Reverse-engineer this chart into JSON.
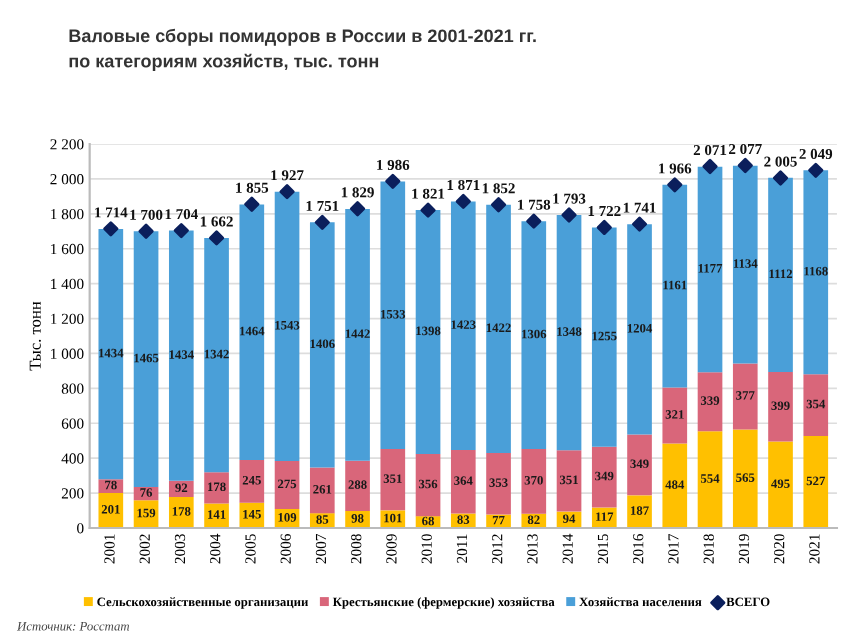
{
  "chart_data": {
    "type": "bar",
    "stacked": true,
    "title": "Валовые сборы помидоров в России в 2001-2021 гг.\nпо категориям хозяйств, тыс. тонн",
    "ylabel": "Тыс. тонн",
    "categories": [
      "2001",
      "2002",
      "2003",
      "2004",
      "2005",
      "2006",
      "2007",
      "2008",
      "2009",
      "2010",
      "2011",
      "2012",
      "2013",
      "2014",
      "2015",
      "2016",
      "2017",
      "2018",
      "2019",
      "2020",
      "2021"
    ],
    "series": [
      {
        "name": "Сельскохозяйственные организации",
        "color": "#ffc000",
        "values": [
          201,
          159,
          178,
          141,
          145,
          109,
          85,
          98,
          101,
          68,
          83,
          77,
          82,
          94,
          117,
          187,
          484,
          554,
          565,
          495,
          527
        ]
      },
      {
        "name": "Крестьянские (фермерские) хозяйства",
        "color": "#d9667a",
        "values": [
          78,
          76,
          92,
          178,
          245,
          275,
          261,
          288,
          351,
          356,
          364,
          353,
          370,
          351,
          349,
          349,
          321,
          339,
          377,
          399,
          354
        ]
      },
      {
        "name": "Хозяйства населения",
        "color": "#4a9fd8",
        "values": [
          1434,
          1465,
          1434,
          1342,
          1464,
          1543,
          1406,
          1442,
          1533,
          1398,
          1423,
          1422,
          1306,
          1348,
          1255,
          1204,
          1161,
          1177,
          1134,
          1112,
          1168
        ]
      },
      {
        "name": "ВСЕГО",
        "type": "scatter",
        "color": "#0b1f5c",
        "marker": "diamond",
        "values": [
          1714,
          1700,
          1704,
          1662,
          1855,
          1927,
          1751,
          1829,
          1986,
          1821,
          1871,
          1852,
          1758,
          1793,
          1722,
          1741,
          1966,
          2071,
          2077,
          2005,
          2049
        ],
        "value_labels": [
          "1 714",
          "1 700",
          "1 704",
          "1 662",
          "1 855",
          "1 927",
          "1 751",
          "1 829",
          "1 986",
          "1 821",
          "1 871",
          "1 852",
          "1 758",
          "1 793",
          "1 722",
          "1 741",
          "1 966",
          "2 071",
          "2 077",
          "2 005",
          "2 049"
        ]
      }
    ],
    "data_labels": true,
    "ylim": [
      0,
      2200
    ],
    "yticks": [
      0,
      200,
      400,
      600,
      800,
      {
        "value": 1000,
        "label": "1 000"
      },
      {
        "value": 1200,
        "label": "1 200"
      },
      {
        "value": 1400,
        "label": "1 400"
      },
      {
        "value": 1600,
        "label": "1 600"
      },
      {
        "value": 1800,
        "label": "1 800"
      },
      {
        "value": 2000,
        "label": "2 000"
      },
      {
        "value": 2200,
        "label": "2 200"
      }
    ],
    "grid": "y",
    "legend": "bottom",
    "annotations": [
      "Источник: Росстат"
    ]
  }
}
